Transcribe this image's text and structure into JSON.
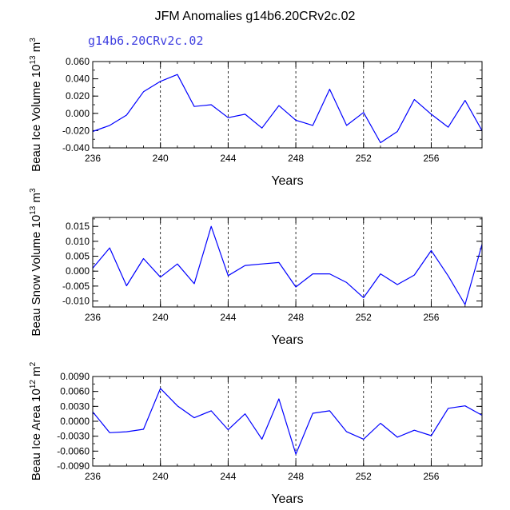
{
  "title": "JFM Anomalies g14b6.20CRv2c.02",
  "colors": {
    "line": "#0000ff",
    "subtitle": "#3f3fe0",
    "axis": "#000000"
  },
  "chart_data": [
    {
      "type": "line",
      "subtitle": "g14b6.20CRv2c.02",
      "ylabel": "Beau Ice Volume",
      "ylabel_exp": "13",
      "ylabel_unit": "m",
      "ylabel_unit_exp": "3",
      "xlabel": "Years",
      "xlim": [
        236,
        259
      ],
      "ylim": [
        -0.04,
        0.06
      ],
      "xticks": [
        236,
        240,
        244,
        248,
        252,
        256
      ],
      "xtick_labels": [
        "236",
        "240",
        "244",
        "248",
        "252",
        "256"
      ],
      "yticks": [
        -0.04,
        -0.02,
        0.0,
        0.02,
        0.04,
        0.06
      ],
      "ytick_labels": [
        "-0.040",
        "-0.020",
        "0.000",
        "0.020",
        "0.040",
        "0.060"
      ],
      "gridlines_x": [
        240,
        244,
        248,
        252,
        256
      ],
      "x": [
        236,
        237,
        238,
        239,
        240,
        241,
        242,
        243,
        244,
        245,
        246,
        247,
        248,
        249,
        250,
        251,
        252,
        253,
        254,
        255,
        256,
        257,
        258,
        259
      ],
      "values": [
        -0.021,
        -0.014,
        -0.002,
        0.025,
        0.037,
        0.045,
        0.008,
        0.01,
        -0.005,
        -0.001,
        -0.017,
        0.009,
        -0.008,
        -0.014,
        0.028,
        -0.014,
        0.001,
        -0.034,
        -0.021,
        0.016,
        -0.001,
        -0.016,
        0.015,
        -0.02
      ]
    },
    {
      "type": "line",
      "subtitle": "",
      "ylabel": "Beau Snow Volume",
      "ylabel_exp": "13",
      "ylabel_unit": "m",
      "ylabel_unit_exp": "3",
      "xlabel": "Years",
      "xlim": [
        236,
        259
      ],
      "ylim": [
        -0.012,
        0.018
      ],
      "xticks": [
        236,
        240,
        244,
        248,
        252,
        256
      ],
      "xtick_labels": [
        "236",
        "240",
        "244",
        "248",
        "252",
        "256"
      ],
      "yticks": [
        -0.01,
        -0.005,
        0.0,
        0.005,
        0.01,
        0.015
      ],
      "ytick_labels": [
        "-0.010",
        "-0.005",
        "0.000",
        "0.005",
        "0.010",
        "0.015"
      ],
      "gridlines_x": [
        240,
        244,
        248,
        252,
        256
      ],
      "x": [
        236,
        237,
        238,
        239,
        240,
        241,
        242,
        243,
        244,
        245,
        246,
        247,
        248,
        249,
        250,
        251,
        252,
        253,
        254,
        255,
        256,
        257,
        258,
        259
      ],
      "values": [
        0.001,
        0.0078,
        -0.0049,
        0.0042,
        -0.002,
        0.0024,
        -0.0042,
        0.015,
        -0.0015,
        0.0019,
        0.0024,
        0.0029,
        -0.0053,
        -0.0009,
        -0.0009,
        -0.0038,
        -0.0089,
        -0.0009,
        -0.0045,
        -0.0013,
        0.0069,
        -0.0016,
        -0.0112,
        0.009
      ]
    },
    {
      "type": "line",
      "subtitle": "",
      "ylabel": "Beau Ice Area",
      "ylabel_exp": "12",
      "ylabel_unit": "m",
      "ylabel_unit_exp": "2",
      "xlabel": "Years",
      "xlim": [
        236,
        259
      ],
      "ylim": [
        -0.009,
        0.009
      ],
      "xticks": [
        236,
        240,
        244,
        248,
        252,
        256
      ],
      "xtick_labels": [
        "236",
        "240",
        "244",
        "248",
        "252",
        "256"
      ],
      "yticks": [
        -0.009,
        -0.006,
        -0.003,
        0.0,
        0.003,
        0.006,
        0.009
      ],
      "ytick_labels": [
        "-0.0090",
        "-0.0060",
        "-0.0030",
        "0.0000",
        "0.0030",
        "0.0060",
        "0.0090"
      ],
      "gridlines_x": [
        240,
        244,
        248,
        252,
        256
      ],
      "x": [
        236,
        237,
        238,
        239,
        240,
        241,
        242,
        243,
        244,
        245,
        246,
        247,
        248,
        249,
        250,
        251,
        252,
        253,
        254,
        255,
        256,
        257,
        258,
        259
      ],
      "values": [
        0.0019,
        -0.0023,
        -0.0021,
        -0.0016,
        0.0066,
        0.0031,
        0.0007,
        0.0021,
        -0.0017,
        0.0015,
        -0.0036,
        0.0045,
        -0.0066,
        0.0016,
        0.0021,
        -0.0021,
        -0.0036,
        -0.0004,
        -0.0032,
        -0.0018,
        -0.0029,
        0.0026,
        0.0031,
        0.0012
      ]
    }
  ]
}
